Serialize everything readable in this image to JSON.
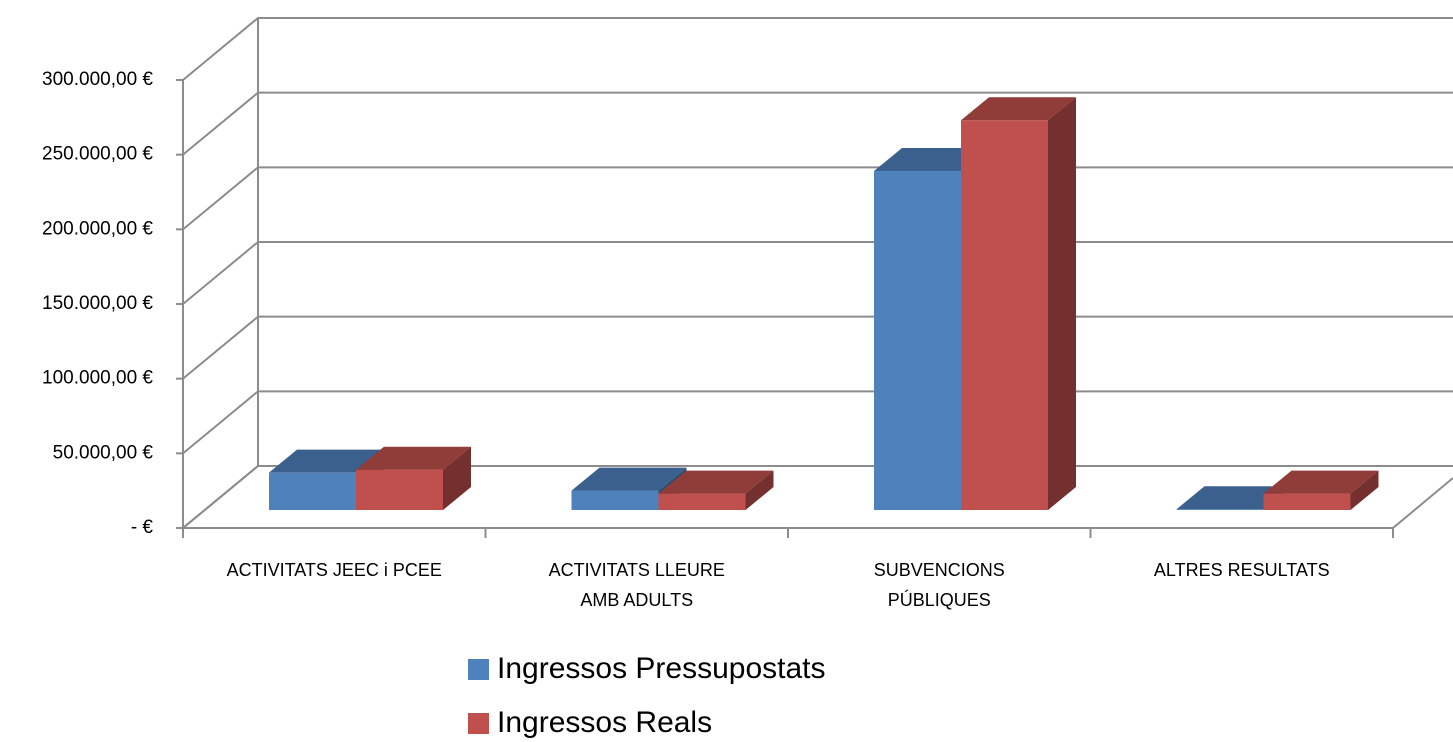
{
  "chart_data": {
    "type": "bar3d",
    "categories": [
      "ACTIVITATS JEEC i PCEE",
      "ACTIVITATS LLEURE\nAMB ADULTS",
      "SUBVENCIONS\nPÚBLIQUES",
      "ALTRES RESULTATS"
    ],
    "series": [
      {
        "name": "Ingressos Pressupostats",
        "color": "#4f81bd",
        "values": [
          25000,
          13000,
          227000,
          500
        ]
      },
      {
        "name": "Ingressos Reals",
        "color": "#c0504d",
        "values": [
          27000,
          11000,
          261000,
          11000
        ]
      }
    ],
    "ylim": [
      0,
      300000
    ],
    "yticks": [
      {
        "value": 0,
        "label": "- €"
      },
      {
        "value": 50000,
        "label": "50.000,00 €"
      },
      {
        "value": 100000,
        "label": "100.000,00 €"
      },
      {
        "value": 150000,
        "label": "150.000,00 €"
      },
      {
        "value": 200000,
        "label": "200.000,00 €"
      },
      {
        "value": 250000,
        "label": "250.000,00 €"
      },
      {
        "value": 300000,
        "label": "300.000,00 €"
      }
    ],
    "grid": true
  }
}
